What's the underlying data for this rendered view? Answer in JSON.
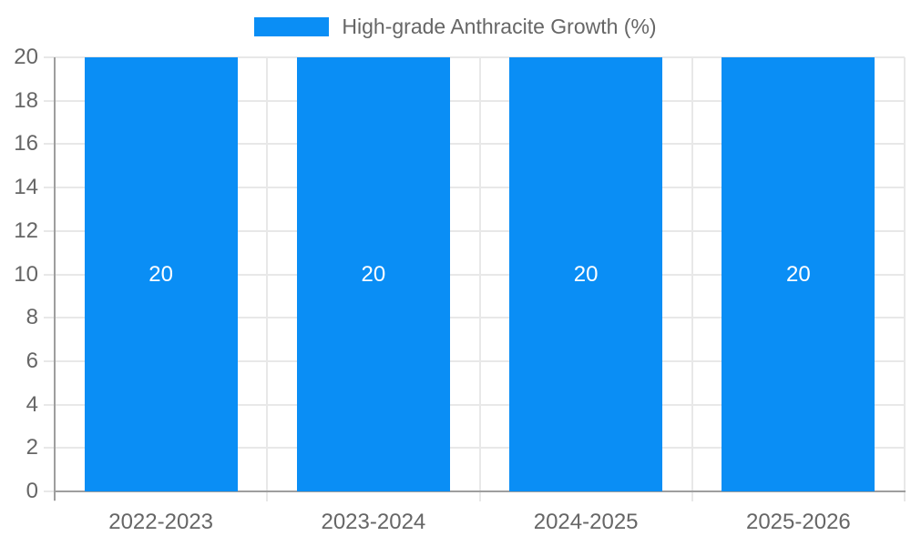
{
  "chart_data": {
    "type": "bar",
    "categories": [
      "2022-2023",
      "2023-2024",
      "2024-2025",
      "2025-2026"
    ],
    "series": [
      {
        "name": "High-grade Anthracite Growth (%)",
        "values": [
          20,
          20,
          20,
          20
        ]
      }
    ],
    "bar_value_labels": [
      "20",
      "20",
      "20",
      "20"
    ],
    "title": "",
    "xlabel": "",
    "ylabel": "",
    "ylim": [
      0,
      20
    ],
    "ytick_step": 2,
    "ytick_labels": [
      "0",
      "2",
      "4",
      "6",
      "8",
      "10",
      "12",
      "14",
      "16",
      "18",
      "20"
    ],
    "grid": true,
    "legend_position": "top",
    "colors": {
      "bar": "#0a8ef5",
      "grid": "#e8e8e8",
      "axis": "#9e9e9e",
      "tick_text": "#666666",
      "legend_text": "#666666",
      "bar_label_text": "#ffffff",
      "background": "#ffffff"
    }
  }
}
